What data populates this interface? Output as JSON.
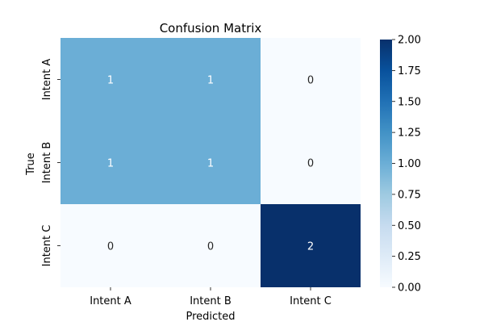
{
  "chart_data": {
    "type": "heatmap",
    "title": "Confusion Matrix",
    "xlabel": "Predicted",
    "ylabel": "True",
    "x_categories": [
      "Intent A",
      "Intent B",
      "Intent C"
    ],
    "y_categories": [
      "Intent A",
      "Intent B",
      "Intent C"
    ],
    "values": [
      [
        1,
        1,
        0
      ],
      [
        1,
        1,
        0
      ],
      [
        0,
        0,
        2
      ]
    ],
    "colormap": "Blues",
    "color_range": [
      0,
      2
    ],
    "colorbar_ticks": [
      "0.00",
      "0.25",
      "0.50",
      "0.75",
      "1.00",
      "1.25",
      "1.50",
      "1.75",
      "2.00"
    ],
    "annotated": true,
    "grid": false
  },
  "colors": {
    "low": "#f7fbff",
    "mid": "#6baed6",
    "high": "#08306b",
    "text_on_dark": "#ffffff",
    "text_on_light": "#262626",
    "axis": "#000000"
  }
}
